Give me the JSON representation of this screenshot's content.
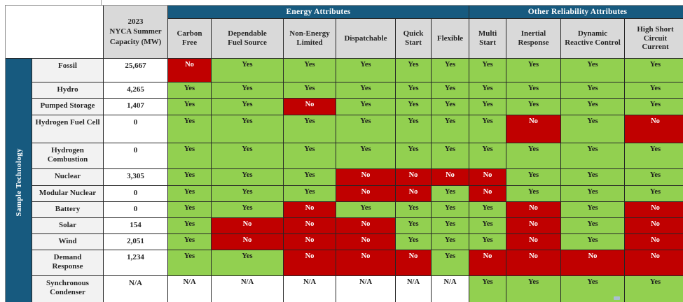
{
  "chart_data": {
    "type": "table",
    "side_label": "Sample Technology",
    "capacity_header_lines": [
      "2023",
      "NYCA Summer",
      "Capacity (MW)"
    ],
    "groups": [
      {
        "label": "Energy Attributes",
        "columns": [
          "Carbon Free",
          "Dependable Fuel Source",
          "Non-Energy Limited",
          "Dispatchable",
          "Quick Start",
          "Flexible"
        ]
      },
      {
        "label": "Other Reliability Attributes",
        "columns": [
          "Multi Start",
          "Inertial Response",
          "Dynamic Reactive Control",
          "High Short Circuit Current"
        ]
      }
    ],
    "rows": [
      {
        "technology": "Fossil",
        "capacity_mw": "25,667",
        "attributes": [
          "No",
          "Yes",
          "Yes",
          "Yes",
          "Yes",
          "Yes",
          "Yes",
          "Yes",
          "Yes",
          "Yes"
        ]
      },
      {
        "technology": "Hydro",
        "capacity_mw": "4,265",
        "attributes": [
          "Yes",
          "Yes",
          "Yes",
          "Yes",
          "Yes",
          "Yes",
          "Yes",
          "Yes",
          "Yes",
          "Yes"
        ]
      },
      {
        "technology": "Pumped Storage",
        "capacity_mw": "1,407",
        "attributes": [
          "Yes",
          "Yes",
          "No",
          "Yes",
          "Yes",
          "Yes",
          "Yes",
          "Yes",
          "Yes",
          "Yes"
        ]
      },
      {
        "technology": "Hydrogen Fuel Cell",
        "capacity_mw": "0",
        "attributes": [
          "Yes",
          "Yes",
          "Yes",
          "Yes",
          "Yes",
          "Yes",
          "Yes",
          "No",
          "Yes",
          "No"
        ]
      },
      {
        "technology": "Hydrogen Combustion",
        "capacity_mw": "0",
        "attributes": [
          "Yes",
          "Yes",
          "Yes",
          "Yes",
          "Yes",
          "Yes",
          "Yes",
          "Yes",
          "Yes",
          "Yes"
        ]
      },
      {
        "technology": "Nuclear",
        "capacity_mw": "3,305",
        "attributes": [
          "Yes",
          "Yes",
          "Yes",
          "No",
          "No",
          "No",
          "No",
          "Yes",
          "Yes",
          "Yes"
        ]
      },
      {
        "technology": "Modular Nuclear",
        "capacity_mw": "0",
        "attributes": [
          "Yes",
          "Yes",
          "Yes",
          "No",
          "No",
          "Yes",
          "No",
          "Yes",
          "Yes",
          "Yes"
        ]
      },
      {
        "technology": "Battery",
        "capacity_mw": "0",
        "attributes": [
          "Yes",
          "Yes",
          "No",
          "Yes",
          "Yes",
          "Yes",
          "Yes",
          "No",
          "Yes",
          "No"
        ]
      },
      {
        "technology": "Solar",
        "capacity_mw": "154",
        "attributes": [
          "Yes",
          "No",
          "No",
          "No",
          "Yes",
          "Yes",
          "Yes",
          "No",
          "Yes",
          "No"
        ]
      },
      {
        "technology": "Wind",
        "capacity_mw": "2,051",
        "attributes": [
          "Yes",
          "No",
          "No",
          "No",
          "Yes",
          "Yes",
          "Yes",
          "No",
          "Yes",
          "No"
        ]
      },
      {
        "technology": "Demand Response",
        "capacity_mw": "1,234",
        "attributes": [
          "Yes",
          "Yes",
          "No",
          "No",
          "No",
          "Yes",
          "No",
          "No",
          "No",
          "No"
        ]
      },
      {
        "technology": "Synchronous Condenser",
        "capacity_mw": "N/A",
        "attributes": [
          "N/A",
          "N/A",
          "N/A",
          "N/A",
          "N/A",
          "N/A",
          "Yes",
          "Yes",
          "Yes",
          "Yes"
        ]
      }
    ],
    "value_colors": {
      "Yes": "#92D050",
      "No": "#C00000",
      "N/A": "#FFFFFF"
    },
    "header_fill": "#175A7F",
    "subheader_fill": "#D9D9D9",
    "row_label_fill": "#F2F2F2"
  }
}
